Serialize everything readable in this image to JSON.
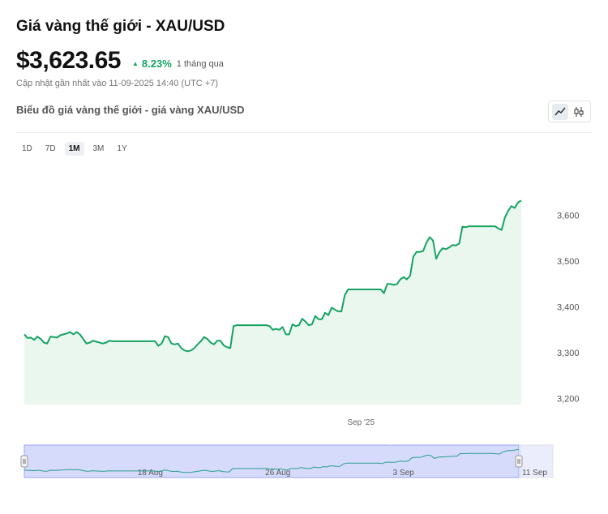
{
  "header": {
    "title": "Giá vàng thế giới - XAU/USD",
    "price": "$3,623.65",
    "change_pct": "8.23%",
    "change_period": "1 tháng qua",
    "updated": "Cập nhật gần nhất vào 11-09-2025 14:40 (UTC +7)",
    "subtitle": "Biểu đồ giá vàng thế giới - giá vàng XAU/USD"
  },
  "ranges": [
    {
      "label": "1D",
      "active": false
    },
    {
      "label": "7D",
      "active": false
    },
    {
      "label": "1M",
      "active": true
    },
    {
      "label": "3M",
      "active": false
    },
    {
      "label": "1Y",
      "active": false
    }
  ],
  "chart_data": {
    "type": "area",
    "x_start": "2025-08-11",
    "x_end": "2025-09-11",
    "y": [
      3340,
      3332,
      3333,
      3328,
      3335,
      3330,
      3322,
      3320,
      3335,
      3334,
      3333,
      3338,
      3340,
      3342,
      3345,
      3340,
      3345,
      3340,
      3330,
      3320,
      3322,
      3326,
      3324,
      3322,
      3320,
      3322,
      3326,
      3325,
      3325,
      3325,
      3325,
      3325,
      3325,
      3325,
      3325,
      3325,
      3325,
      3325,
      3325,
      3325,
      3325,
      3315,
      3320,
      3336,
      3334,
      3320,
      3318,
      3320,
      3310,
      3305,
      3303,
      3305,
      3310,
      3318,
      3325,
      3334,
      3330,
      3322,
      3318,
      3326,
      3326,
      3316,
      3312,
      3310,
      3358,
      3360,
      3360,
      3360,
      3360,
      3360,
      3360,
      3360,
      3360,
      3360,
      3360,
      3358,
      3350,
      3352,
      3350,
      3356,
      3340,
      3340,
      3362,
      3358,
      3360,
      3374,
      3368,
      3360,
      3362,
      3380,
      3373,
      3373,
      3387,
      3382,
      3398,
      3394,
      3390,
      3390,
      3425,
      3438,
      3438,
      3438,
      3438,
      3438,
      3438,
      3438,
      3438,
      3438,
      3438,
      3438,
      3430,
      3450,
      3450,
      3448,
      3450,
      3460,
      3465,
      3460,
      3468,
      3510,
      3520,
      3520,
      3522,
      3540,
      3552,
      3545,
      3505,
      3520,
      3528,
      3526,
      3530,
      3535,
      3534,
      3538,
      3575,
      3574,
      3576,
      3576,
      3576,
      3576,
      3576,
      3576,
      3576,
      3576,
      3576,
      3571,
      3568,
      3595,
      3610,
      3620,
      3616,
      3628,
      3632
    ],
    "yticks": [
      "3,200",
      "3,300",
      "3,400",
      "3,500",
      "3,600"
    ],
    "ytick_values": [
      3200,
      3300,
      3400,
      3500,
      3600
    ],
    "ylim": [
      3200,
      3650
    ],
    "xticks": [
      {
        "label": "Sep '25",
        "date": "2025-09-01"
      }
    ],
    "navigator_ticks": [
      {
        "label": "18 Aug",
        "date": "2025-08-18"
      },
      {
        "label": "26 Aug",
        "date": "2025-08-26"
      },
      {
        "label": "3 Sep",
        "date": "2025-09-03"
      },
      {
        "label": "11 Sep",
        "date": "2025-09-11"
      }
    ],
    "line_color": "#15a362",
    "fill_color": "#eaf7ef",
    "navigator_color": "#c6cdfb"
  }
}
